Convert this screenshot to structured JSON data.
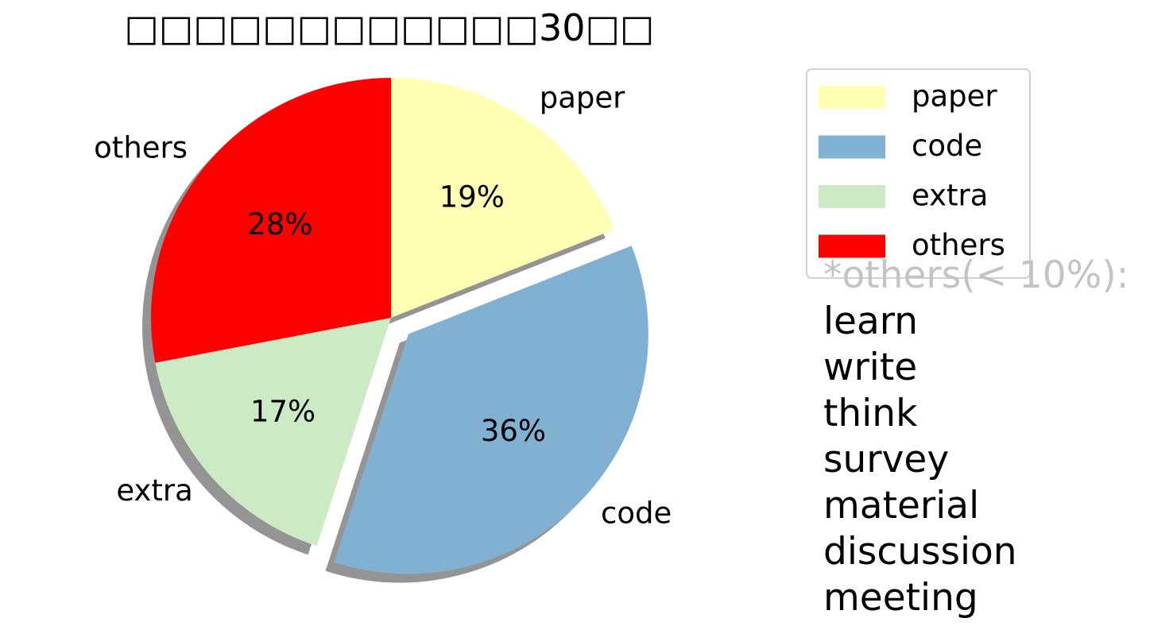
{
  "chart_data": {
    "type": "pie",
    "title": "□□□□□□□□□□□□30□□",
    "start_angle_deg": 90,
    "direction": "clockwise",
    "shadow": true,
    "legend_position": "top-right",
    "slices": [
      {
        "label": "paper",
        "value": 19,
        "pct_label": "19%",
        "color": "#ffffb3",
        "explode": false
      },
      {
        "label": "code",
        "value": 36,
        "pct_label": "36%",
        "color": "#80b1d3",
        "explode": true
      },
      {
        "label": "extra",
        "value": 17,
        "pct_label": "17%",
        "color": "#ccebc5",
        "explode": false
      },
      {
        "label": "others",
        "value": 28,
        "pct_label": "28%",
        "color": "#ff0000",
        "explode": false
      }
    ],
    "annotation": {
      "heading": "*others(< 10%):",
      "items": [
        "learn",
        "write",
        "think",
        "survey",
        "material",
        "discussion",
        "meeting"
      ]
    }
  }
}
